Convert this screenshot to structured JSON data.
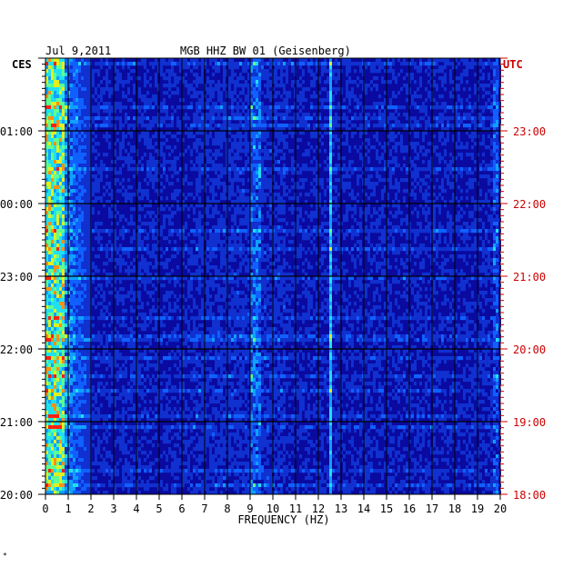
{
  "header": {
    "date": "Jul 9,2011",
    "station": "MGB HHZ BW 01 (Geisenberg)"
  },
  "tz_left": "CES",
  "tz_right": "UTC",
  "chart_data": {
    "type": "heatmap",
    "title": "",
    "xlabel": "FREQUENCY (HZ)",
    "xlim": [
      0,
      20
    ],
    "x_ticks": [
      "0",
      "1",
      "2",
      "3",
      "4",
      "5",
      "6",
      "7",
      "8",
      "9",
      "10",
      "11",
      "12",
      "13",
      "14",
      "15",
      "16",
      "17",
      "18",
      "19",
      "20"
    ],
    "y_ticks_left": [
      "01:00",
      "00:00",
      "23:00",
      "22:00",
      "21:00",
      "20:00"
    ],
    "y_ticks_right": [
      "23:00",
      "22:00",
      "21:00",
      "20:00",
      "19:00",
      "18:00"
    ],
    "colors": {
      "background": "#0a0aa0",
      "grid": "#000000",
      "axis_text": "#000000",
      "utc_text": "#cc0000"
    }
  },
  "footnote": "*"
}
